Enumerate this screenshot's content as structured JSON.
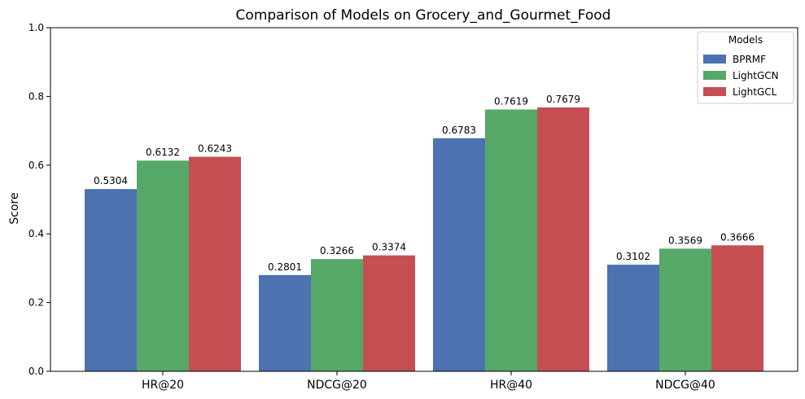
{
  "chart_data": {
    "type": "bar",
    "title": "Comparison of Models on Grocery_and_Gourmet_Food",
    "xlabel": "",
    "ylabel": "Score",
    "ylim": [
      0,
      1.0
    ],
    "yticks": [
      "0.0",
      "0.2",
      "0.4",
      "0.6",
      "0.8",
      "1.0"
    ],
    "grid": false,
    "legend_title": "Models",
    "legend_position": "top-right",
    "categories": [
      "HR@20",
      "NDCG@20",
      "HR@40",
      "NDCG@40"
    ],
    "series": [
      {
        "name": "BPRMF",
        "color": "#4c72b0",
        "values": [
          0.5304,
          0.2801,
          0.6783,
          0.3102
        ],
        "labels": [
          "0.5304",
          "0.2801",
          "0.6783",
          "0.3102"
        ]
      },
      {
        "name": "LightGCN",
        "color": "#55a868",
        "values": [
          0.6132,
          0.3266,
          0.7619,
          0.3569
        ],
        "labels": [
          "0.6132",
          "0.3266",
          "0.7619",
          "0.3569"
        ]
      },
      {
        "name": "LightGCL",
        "color": "#c44e52",
        "values": [
          0.6243,
          0.3374,
          0.7679,
          0.3666
        ],
        "labels": [
          "0.6243",
          "0.3374",
          "0.7679",
          "0.3666"
        ]
      }
    ]
  }
}
